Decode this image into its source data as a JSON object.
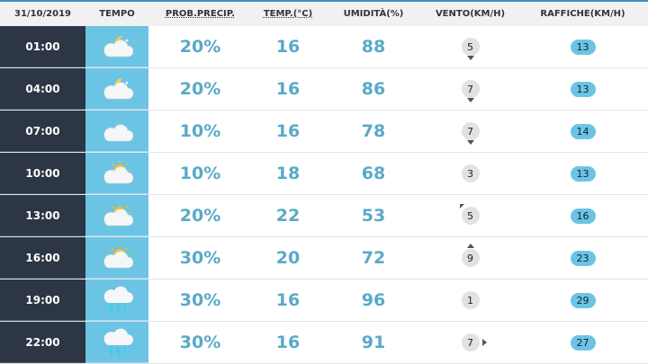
{
  "header": {
    "date": "31/10/2019",
    "tempo": "TEMPO",
    "precip": "PROB.PRECIP.",
    "temp": "TEMP.(°C)",
    "umid": "UMIDITÀ(%)",
    "vento": "VENTO(KM/H)",
    "raffiche": "RAFFICHE(KM/H)"
  },
  "colors": {
    "time_bg": "#2d3645",
    "icon_bg": "#6cc4e4",
    "value": "#5aa9c8",
    "gust_badge": "#6cc4e4"
  },
  "rows": [
    {
      "time": "01:00",
      "icon": "cloud-moon",
      "precip": "20%",
      "temp": "16",
      "umid": "88",
      "wind": "5",
      "wind_dir": "down",
      "gust": "13"
    },
    {
      "time": "04:00",
      "icon": "cloud-moon",
      "precip": "20%",
      "temp": "16",
      "umid": "86",
      "wind": "7",
      "wind_dir": "down",
      "gust": "13"
    },
    {
      "time": "07:00",
      "icon": "cloud",
      "precip": "10%",
      "temp": "16",
      "umid": "78",
      "wind": "7",
      "wind_dir": "down",
      "gust": "14"
    },
    {
      "time": "10:00",
      "icon": "cloud-sun",
      "precip": "10%",
      "temp": "18",
      "umid": "68",
      "wind": "3",
      "wind_dir": "none",
      "gust": "13"
    },
    {
      "time": "13:00",
      "icon": "cloud-sun",
      "precip": "20%",
      "temp": "22",
      "umid": "53",
      "wind": "5",
      "wind_dir": "up-left",
      "gust": "16"
    },
    {
      "time": "16:00",
      "icon": "cloud-sun",
      "precip": "30%",
      "temp": "20",
      "umid": "72",
      "wind": "9",
      "wind_dir": "up",
      "gust": "23"
    },
    {
      "time": "19:00",
      "icon": "cloud-storm",
      "precip": "30%",
      "temp": "16",
      "umid": "96",
      "wind": "1",
      "wind_dir": "none",
      "gust": "29"
    },
    {
      "time": "22:00",
      "icon": "cloud-storm",
      "precip": "30%",
      "temp": "16",
      "umid": "91",
      "wind": "7",
      "wind_dir": "right",
      "gust": "27"
    }
  ]
}
